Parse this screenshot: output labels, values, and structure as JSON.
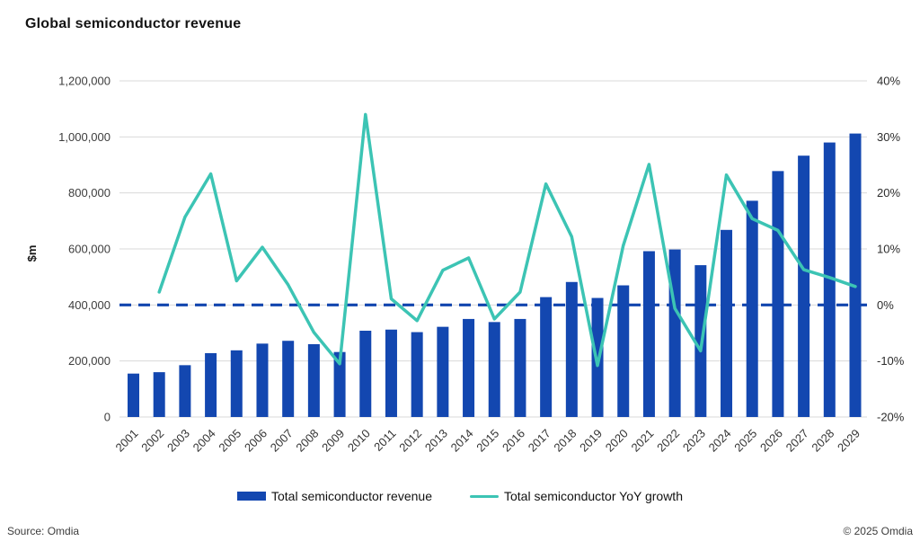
{
  "title": "Global semiconductor revenue",
  "footer": {
    "source": "Source: Omdia",
    "copyright": "© 2025 Omdia"
  },
  "legend": {
    "revenue_label": "Total semiconductor revenue",
    "growth_label": "Total semiconductor YoY growth"
  },
  "colors": {
    "bar": "#1347b0",
    "line": "#3cc4b4",
    "zero_dash": "#1145ae",
    "grid": "#d9d9d9",
    "axis_text": "#3d3d3d",
    "title_text": "#141414"
  },
  "chart_data": {
    "type": "bar+line combo",
    "title": "Global semiconductor revenue",
    "categories": [
      2001,
      2002,
      2003,
      2004,
      2005,
      2006,
      2007,
      2008,
      2009,
      2010,
      2011,
      2012,
      2013,
      2014,
      2015,
      2016,
      2017,
      2018,
      2019,
      2020,
      2021,
      2022,
      2023,
      2024,
      2025,
      2026,
      2027,
      2028,
      2029
    ],
    "series": [
      {
        "name": "Total semiconductor revenue",
        "type": "bar",
        "axis": "left",
        "unit": "$m",
        "values": [
          155000,
          160000,
          185000,
          228000,
          238000,
          262000,
          272000,
          260000,
          232000,
          308000,
          312000,
          303000,
          322000,
          350000,
          339000,
          350000,
          428000,
          482000,
          425000,
          470000,
          592000,
          598000,
          542000,
          668000,
          772000,
          878000,
          933000,
          980000,
          1012000
        ]
      },
      {
        "name": "Total semiconductor YoY growth",
        "type": "line",
        "axis": "right",
        "unit": "%",
        "values": [
          null,
          2.3,
          15.7,
          23.4,
          4.3,
          10.3,
          3.6,
          -4.9,
          -10.5,
          34,
          1.1,
          -2.8,
          6.2,
          8.4,
          -2.5,
          2.3,
          21.6,
          12.2,
          -10.8,
          10.6,
          25.1,
          -0.6,
          -8.2,
          23.2,
          15.4,
          13.3,
          6.3,
          4.9,
          3.3
        ]
      }
    ],
    "left_axis": {
      "label": "$m",
      "min": 0,
      "max": 1200000,
      "tick_labels": [
        "0",
        "200,000",
        "400,000",
        "600,000",
        "800,000",
        "1,000,000",
        "1,200,000"
      ]
    },
    "right_axis": {
      "min": -20,
      "max": 40,
      "tick_labels": [
        "-20%",
        "-10%",
        "0%",
        "10%",
        "20%",
        "30%",
        "40%"
      ]
    },
    "annotations": {
      "zero_growth_dashed_line_at_pct": 0
    },
    "grid": true,
    "legend_position": "bottom"
  }
}
